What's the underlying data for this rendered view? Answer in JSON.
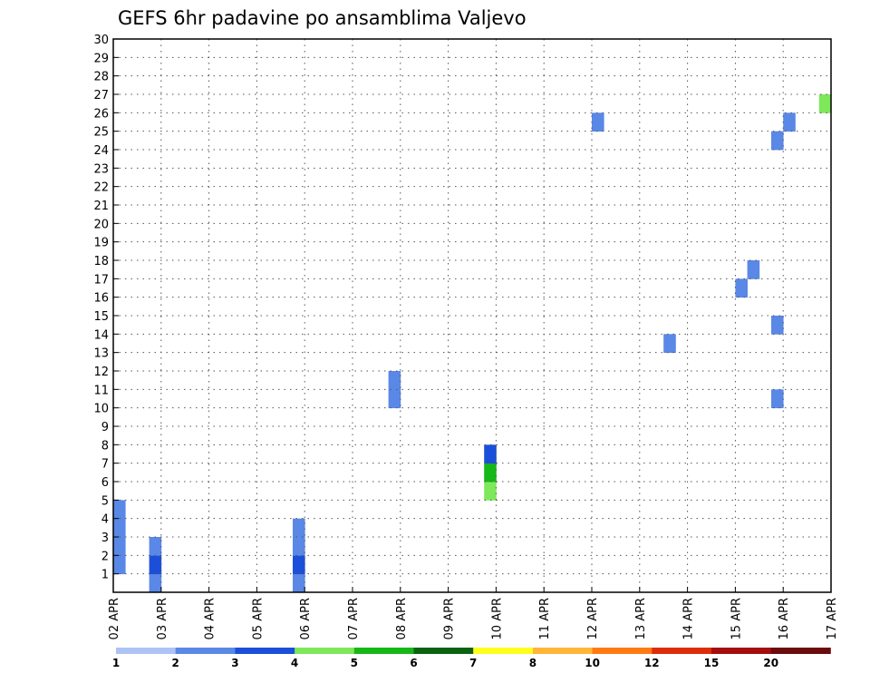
{
  "chart_data": {
    "type": "heatmap",
    "title": "GEFS 6hr padavine po ansamblima Valjevo",
    "x_tick_labels": [
      "02 APR",
      "03 APR",
      "04 APR",
      "05 APR",
      "06 APR",
      "07 APR",
      "08 APR",
      "09 APR",
      "10 APR",
      "11 APR",
      "12 APR",
      "13 APR",
      "14 APR",
      "15 APR",
      "16 APR",
      "17 APR"
    ],
    "y_tick_labels": [
      "1",
      "2",
      "3",
      "4",
      "5",
      "6",
      "7",
      "8",
      "9",
      "10",
      "11",
      "12",
      "13",
      "14",
      "15",
      "16",
      "17",
      "18",
      "19",
      "20",
      "21",
      "22",
      "23",
      "24",
      "25",
      "26",
      "27",
      "28",
      "29",
      "30"
    ],
    "x_range_steps": [
      0,
      60
    ],
    "y_range": [
      0,
      30
    ],
    "grid": true,
    "legend_position": "bottom",
    "legend": {
      "labels": [
        "1",
        "2",
        "3",
        "4",
        "5",
        "6",
        "7",
        "8",
        "10",
        "12",
        "15",
        "20"
      ],
      "colors": [
        "#adc3f5",
        "#5a88e6",
        "#1c4fd9",
        "#7ee85a",
        "#16b818",
        "#0b6312",
        "#ffff1e",
        "#ffb637",
        "#ff7a14",
        "#dd2d08",
        "#a40e0e",
        "#6b0b0b"
      ]
    },
    "step_hours": 6,
    "cells": [
      [
        0,
        4,
        1
      ],
      [
        0,
        3,
        1
      ],
      [
        0,
        2,
        1
      ],
      [
        0,
        1,
        1
      ],
      [
        3,
        0,
        1
      ],
      [
        3,
        1,
        2
      ],
      [
        3,
        2,
        1
      ],
      [
        15,
        0,
        1
      ],
      [
        15,
        1,
        2
      ],
      [
        15,
        2,
        1
      ],
      [
        15,
        3,
        1
      ],
      [
        31,
        5,
        3
      ],
      [
        31,
        6,
        4
      ],
      [
        31,
        7,
        2
      ],
      [
        23,
        10,
        1
      ],
      [
        23,
        11,
        1
      ],
      [
        55,
        10,
        1
      ],
      [
        55,
        14,
        1
      ],
      [
        52,
        16,
        1
      ],
      [
        53,
        17,
        1
      ],
      [
        46,
        13,
        1
      ],
      [
        55,
        24,
        1
      ],
      [
        56,
        25,
        1
      ],
      [
        40,
        25,
        1
      ],
      [
        59,
        26,
        3
      ]
    ]
  }
}
